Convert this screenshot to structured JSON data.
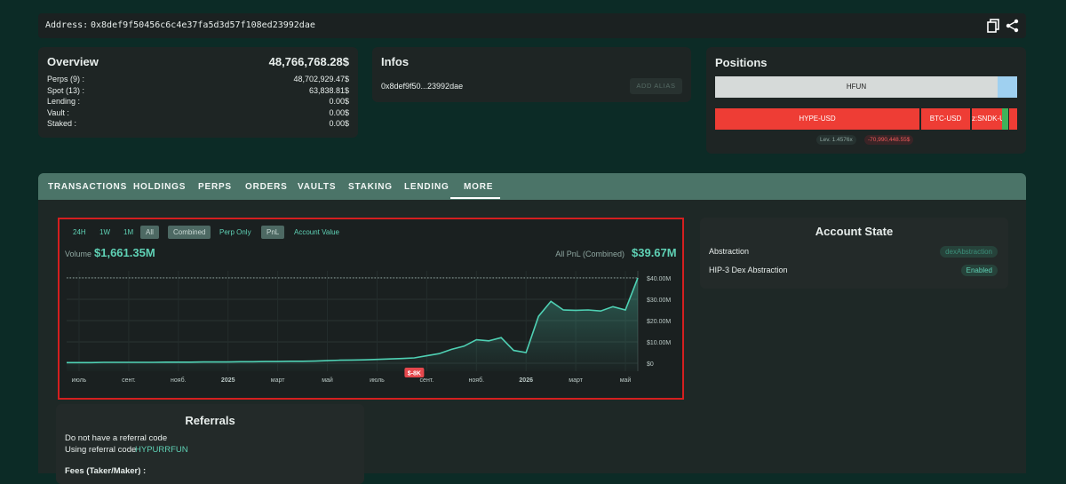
{
  "header": {
    "address_label": "Address:",
    "address": "0x8def9f50456c6c4e37fa5d3d57f108ed23992dae"
  },
  "overview": {
    "title": "Overview",
    "total": "48,766,768.28$",
    "rows": [
      [
        "Perps (9) :",
        "48,702,929.47$"
      ],
      [
        "Spot (13) :",
        "63,838.81$"
      ],
      [
        "Lending :",
        "0.00$"
      ],
      [
        "Vault :",
        "0.00$"
      ],
      [
        "Staked :",
        "0.00$"
      ]
    ]
  },
  "infos": {
    "title": "Infos",
    "address": "0x8def9f50...23992dae",
    "button": "ADD ALIAS"
  },
  "positions": {
    "title": "Positions",
    "spot_bar": [
      "HFUN"
    ],
    "perp_bar": [
      "HYPE-USD",
      "BTC-USD",
      "z:SNDK-US"
    ],
    "leverage": "Lev. 1.4576x",
    "pnl": "-70,990,448.55$"
  },
  "tabs": [
    "TRANSACTIONS",
    "HOLDINGS",
    "PERPS",
    "ORDERS",
    "VAULTS",
    "STAKING",
    "LENDING",
    "MORE"
  ],
  "chart_panel": {
    "ranges": [
      "24H",
      "1W",
      "1M",
      "All"
    ],
    "modes": [
      "Combined",
      "Perp Only"
    ],
    "metrics": [
      "PnL",
      "Account Value"
    ],
    "volume_label": "Volume",
    "volume": "$1,661.35M",
    "pnl_label": "All PnL (Combined)",
    "pnl": "$39.67M"
  },
  "chart_data": {
    "type": "line",
    "color": "#4fd1b4",
    "x": [
      0,
      1,
      2,
      3,
      4,
      5,
      6,
      7,
      8,
      9,
      10,
      11,
      12,
      13,
      14,
      15,
      16,
      17,
      18,
      19,
      20,
      21,
      22,
      23,
      24,
      25,
      26,
      27,
      28,
      29,
      30,
      31,
      32,
      33,
      34,
      35,
      36,
      37,
      38,
      39,
      40,
      41,
      42,
      43,
      44,
      45,
      46
    ],
    "values": [
      300000,
      300000,
      300000,
      400000,
      400000,
      400000,
      400000,
      400000,
      500000,
      500000,
      500000,
      600000,
      600000,
      600000,
      700000,
      700000,
      800000,
      800000,
      900000,
      900000,
      1000000,
      1200000,
      1400000,
      1500000,
      1600000,
      1800000,
      2000000,
      2200000,
      2500000,
      3500000,
      4500000,
      6500000,
      8000000,
      11000000,
      10500000,
      12000000,
      6000000,
      5000000,
      22000000,
      29000000,
      25000000,
      24800000,
      25000000,
      24500000,
      26500000,
      25000000,
      40000000
    ],
    "xlim": [
      0,
      46
    ],
    "xticks": [
      {
        "value": 1,
        "label": "июль"
      },
      {
        "value": 5,
        "label": "сент."
      },
      {
        "value": 9,
        "label": "нояб."
      },
      {
        "value": 13,
        "label": "2025"
      },
      {
        "value": 17,
        "label": "март"
      },
      {
        "value": 21,
        "label": "май"
      },
      {
        "value": 25,
        "label": "июль"
      },
      {
        "value": 29,
        "label": "сент."
      },
      {
        "value": 33,
        "label": "нояб."
      },
      {
        "value": 37,
        "label": "2026"
      },
      {
        "value": 41,
        "label": "март"
      },
      {
        "value": 45,
        "label": "май"
      }
    ],
    "ylim": [
      -3750000,
      43300000
    ],
    "yticks": [
      {
        "value": 0,
        "label": "$0"
      },
      {
        "value": 10000000,
        "label": "$10.00M"
      },
      {
        "value": 20000000,
        "label": "$20.00M"
      },
      {
        "value": 30000000,
        "label": "$30.00M"
      },
      {
        "value": 40000000,
        "label": "$40.00M"
      }
    ],
    "grid": true,
    "annotation": {
      "x": 28,
      "text": "$-8K"
    }
  },
  "account_state": {
    "title": "Account State",
    "rows": [
      [
        "Abstraction",
        "dexAbstraction"
      ],
      [
        "HIP-3 Dex Abstraction",
        "Enabled"
      ]
    ]
  },
  "referrals": {
    "title": "Referrals",
    "no_code": "Do not have a referral code",
    "using": "Using referral code",
    "code": "HYPURRFUN",
    "fees": "Fees (Taker/Maker) :"
  }
}
